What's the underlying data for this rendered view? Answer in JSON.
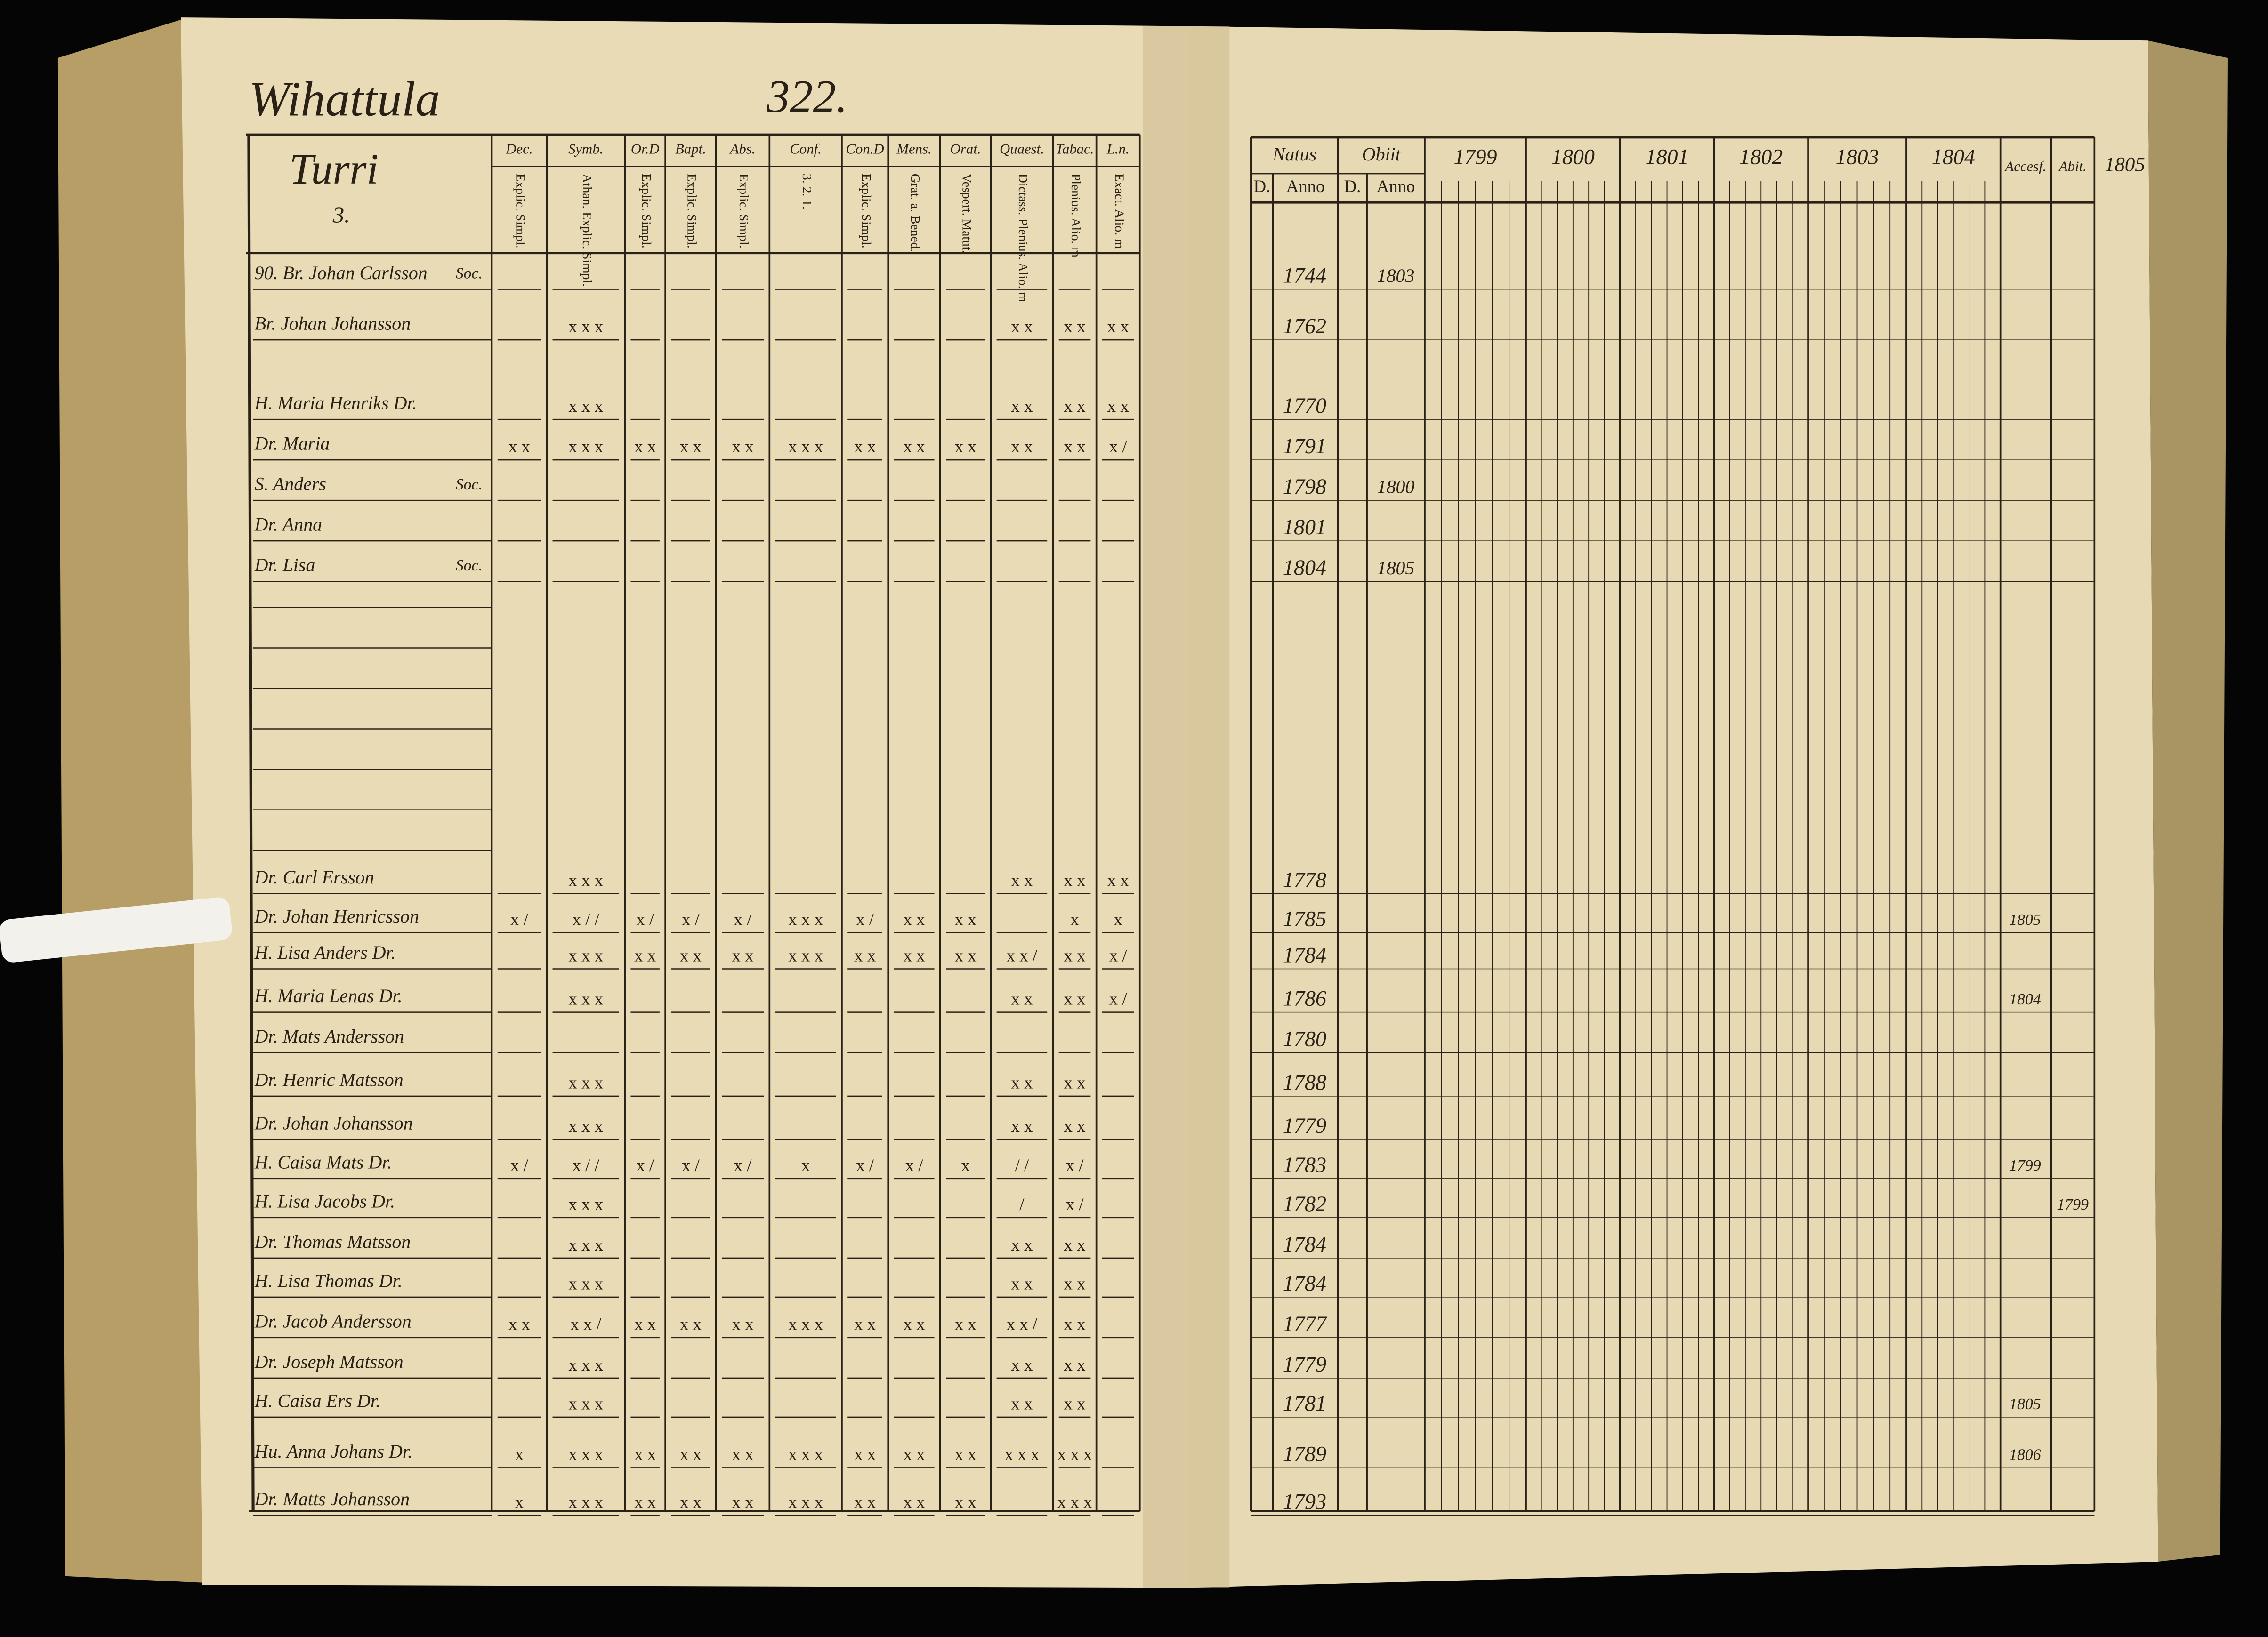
{
  "left": {
    "title": "Wihattula",
    "page_number": "322.",
    "header": {
      "label": "Turri",
      "number": "3."
    },
    "columns": [
      {
        "label": "Dec.",
        "sub": "Explic. Simpl."
      },
      {
        "label": "Symb.",
        "sub": "Athan. Explic. Simpl."
      },
      {
        "label": "Or.D",
        "sub": "Explic. Simpl."
      },
      {
        "label": "Bapt.",
        "sub": "Explic. Simpl."
      },
      {
        "label": "Abs.",
        "sub": "Explic. Simpl."
      },
      {
        "label": "Conf.",
        "sub": "3. 2. 1."
      },
      {
        "label": "Con.D",
        "sub": "Explic. Simpl."
      },
      {
        "label": "Mens.",
        "sub": "Grat. a. Bened."
      },
      {
        "label": "Orat.",
        "sub": "Vespert. Matut."
      },
      {
        "label": "Quaest.",
        "sub": "Dictass. Plenius. Alio. m"
      },
      {
        "label": "Tabac.",
        "sub": "Plenius. Alio. m"
      },
      {
        "label": "L.n.",
        "sub": "Exact. Alio. m"
      }
    ]
  },
  "right": {
    "groups": [
      "Natus",
      "Obiit"
    ],
    "subheads": [
      "D.",
      "Anno",
      "D.",
      "Anno"
    ],
    "years": [
      "1799",
      "1800",
      "1801",
      "1802",
      "1803",
      "1804"
    ],
    "extra": [
      "Accesf.",
      "Abit."
    ],
    "margin": "1805"
  },
  "rows": [
    {
      "name": "90. Br. Johan Carlsson",
      "note": "Soc.",
      "born": "1744",
      "died": "1803"
    },
    {
      "name": "Br. Johan Johansson",
      "marks": [
        null,
        "x x x",
        null,
        null,
        null,
        null,
        null,
        null,
        null,
        "x x",
        "x x",
        "x x"
      ],
      "born": "1762"
    },
    {
      "name": "H. Maria Henriks Dr.",
      "marks": [
        null,
        "x x x",
        null,
        null,
        null,
        null,
        null,
        null,
        null,
        "x x",
        "x x",
        "x x"
      ],
      "born": "1770"
    },
    {
      "name": "Dr. Maria",
      "marks": [
        "x x",
        "x x x",
        "x x",
        "x x",
        "x x",
        "x x x",
        "x x",
        "x x",
        "x x",
        "x x",
        "x x",
        "x /"
      ],
      "born": "1791"
    },
    {
      "name": "S. Anders",
      "note": "Soc.",
      "born": "1798",
      "died": "1800"
    },
    {
      "name": "Dr. Anna",
      "born": "1801"
    },
    {
      "name": "Dr. Lisa",
      "note": "Soc.",
      "born": "1804",
      "died": "1805"
    },
    {
      "name": "Dr. Carl Ersson",
      "marks": [
        null,
        "x x x",
        null,
        null,
        null,
        null,
        null,
        null,
        null,
        "x x",
        "x x",
        "x x"
      ],
      "born": "1778"
    },
    {
      "name": "Dr. Johan Henricsson",
      "marks": [
        "x /",
        "x / /",
        "x /",
        "x /",
        "x /",
        "x x x",
        "x /",
        "x x",
        "x x",
        null,
        "x",
        "x"
      ],
      "born": "1785",
      "accessit": "1805"
    },
    {
      "name": "H. Lisa Anders Dr.",
      "marks": [
        null,
        "x x x",
        "x x",
        "x x",
        "x x",
        "x x x",
        "x x",
        "x x",
        "x x",
        "x x /",
        "x x",
        "x /"
      ],
      "born": "1784"
    },
    {
      "name": "H. Maria Lenas Dr.",
      "marks": [
        null,
        "x x x",
        null,
        null,
        null,
        null,
        null,
        null,
        null,
        "x x",
        "x x",
        "x /"
      ],
      "born": "1786",
      "accessit": "1804"
    },
    {
      "name": "Dr. Mats Andersson",
      "born": "1780"
    },
    {
      "name": "Dr. Henric Matsson",
      "marks": [
        null,
        "x x x",
        null,
        null,
        null,
        null,
        null,
        null,
        null,
        "x x",
        "x x",
        null
      ],
      "born": "1788"
    },
    {
      "name": "Dr. Johan Johansson",
      "marks": [
        null,
        "x x x",
        null,
        null,
        null,
        null,
        null,
        null,
        null,
        "x x",
        "x x",
        null
      ],
      "born": "1779"
    },
    {
      "name": "H. Caisa Mats Dr.",
      "marks": [
        "x /",
        "x / /",
        "x /",
        "x /",
        "x /",
        "x",
        "x /",
        "x /",
        "x",
        "/ /",
        "x /",
        null
      ],
      "born": "1783",
      "accessit": "1799"
    },
    {
      "name": "H. Lisa Jacobs Dr.",
      "marks": [
        null,
        "x x x",
        null,
        null,
        null,
        null,
        null,
        null,
        null,
        "/",
        "x /",
        null
      ],
      "born": "1782",
      "abit": "1799"
    },
    {
      "name": "Dr. Thomas Matsson",
      "marks": [
        null,
        "x x x",
        null,
        null,
        null,
        null,
        null,
        null,
        null,
        "x x",
        "x x",
        null
      ],
      "born": "1784"
    },
    {
      "name": "H. Lisa Thomas Dr.",
      "marks": [
        null,
        "x x x",
        null,
        null,
        null,
        null,
        null,
        null,
        null,
        "x x",
        "x x",
        null
      ],
      "born": "1784"
    },
    {
      "name": "Dr. Jacob Andersson",
      "marks": [
        "x x",
        "x x /",
        "x x",
        "x x",
        "x x",
        "x x x",
        "x x",
        "x x",
        "x x",
        "x x /",
        "x x",
        null
      ],
      "born": "1777"
    },
    {
      "name": "Dr. Joseph Matsson",
      "marks": [
        null,
        "x x x",
        null,
        null,
        null,
        null,
        null,
        null,
        null,
        "x x",
        "x x",
        null
      ],
      "born": "1779"
    },
    {
      "name": "H. Caisa Ers Dr.",
      "marks": [
        null,
        "x x x",
        null,
        null,
        null,
        null,
        null,
        null,
        null,
        "x x",
        "x x",
        null
      ],
      "born": "1781",
      "accessit": "1805"
    },
    {
      "name": "Hu. Anna Johans Dr.",
      "marks": [
        "x",
        "x x x",
        "x x",
        "x x",
        "x x",
        "x x x",
        "x x",
        "x x",
        "x x",
        "x x x",
        "x x x",
        null
      ],
      "born": "1789",
      "accessit": "1806"
    },
    {
      "name": "Dr. Matts Johansson",
      "marks": [
        "x",
        "x x x",
        "x x",
        "x x",
        "x x",
        "x x x",
        "x x",
        "x x",
        "x x",
        null,
        "x x x",
        null
      ],
      "born": "1793"
    }
  ]
}
